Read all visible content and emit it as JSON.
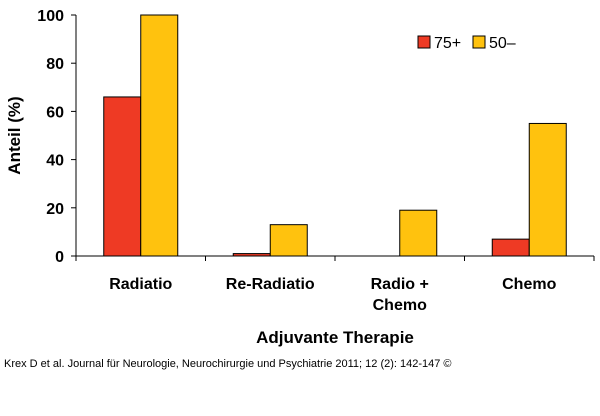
{
  "chart_data": {
    "type": "bar",
    "title": "",
    "xlabel": "Adjuvante Therapie",
    "ylabel": "Anteil (%)",
    "ylim": [
      0,
      100
    ],
    "yticks": [
      0,
      20,
      40,
      60,
      80,
      100
    ],
    "categories": [
      [
        "Radiatio"
      ],
      [
        "Re-Radiatio"
      ],
      [
        "Radio +",
        "Chemo"
      ],
      [
        "Chemo"
      ]
    ],
    "series": [
      {
        "name": "75+",
        "color": "#ee3a24",
        "values": [
          66,
          1,
          0,
          7
        ]
      },
      {
        "name": "50–",
        "color": "#ffc20e",
        "values": [
          100,
          13,
          19,
          55
        ]
      }
    ],
    "legend_position": "top-right",
    "grid": false
  },
  "citation": "Krex D et al. Journal für Neurologie, Neurochirurgie und Psychiatrie 2011; 12 (2): 142-147 ©"
}
